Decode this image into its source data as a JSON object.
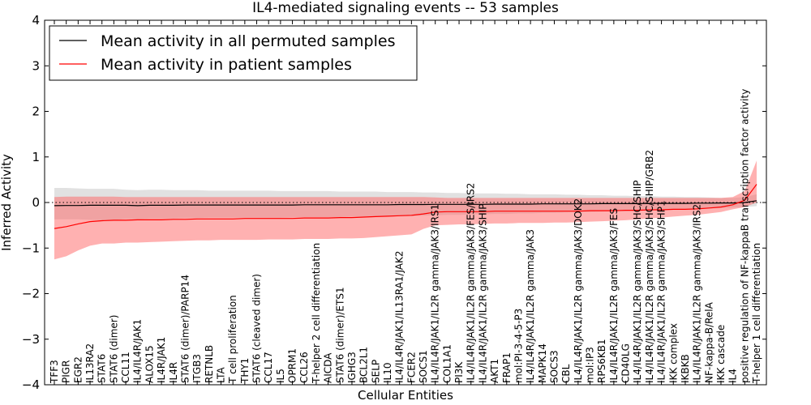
{
  "chart_data": {
    "type": "line",
    "title": "IL4-mediated signaling events -- 53 samples",
    "xlabel": "Cellular Entities",
    "ylabel": "Inferred Activity",
    "ylim": [
      -4,
      4
    ],
    "yticks": [
      "4",
      "3",
      "2",
      "1",
      "0",
      "−1",
      "−2",
      "−3",
      "−4"
    ],
    "ytick_values": [
      4,
      3,
      2,
      1,
      0,
      -1,
      -2,
      -3,
      -4
    ],
    "grid": false,
    "legend_position": "top-left",
    "zero_reference_line": "dotted",
    "categories": [
      "TFF3",
      "PIGR",
      "EGR2",
      "IL13RA2",
      "STAT6",
      "STAT6 (dimer)",
      "CCL11",
      "IL4/IL4R/JAK1",
      "ALOX15",
      "IL4R/JAK1",
      "IL4R",
      "STAT6 (dimer)/PARP14",
      "ITGB3",
      "RETNLB",
      "LTA",
      "T cell proliferation",
      "THY1",
      "STAT6 (cleaved dimer)",
      "CCL17",
      "IL5",
      "OPRM1",
      "CCL26",
      "T-helper 2 cell differentiation",
      "AICDA",
      "STAT6 (dimer)/ETS1",
      "IGHG3",
      "BCL2L1",
      "SELP",
      "IL10",
      "IL4/IL4R/JAK1/IL13RA1/JAK2",
      "FCER2",
      "SOCS1",
      "IL4/IL4R/JAK1/IL2R gamma/JAK3/IRS1",
      "COL1A1",
      "PI3K",
      "IL4/IL4R/JAK1/IL2R gamma/JAK3/FES/IRS2",
      "IL4/IL4R/JAK1/IL2R gamma/JAK3/SHIP",
      "AKT1",
      "FRAP1",
      "mol:PI-3-4-5-P3",
      "IL4/IL4R/JAK1/IL2R gamma/JAK3",
      "MAPK14",
      "SOCS3",
      "CBL",
      "IL4/IL4R/JAK1/IL2R gamma/JAK3/DOK2",
      "mol:IP3",
      "RPS6KB1",
      "IL4/IL4R/JAK1/IL2R gamma/JAK3/FES",
      "CD40LG",
      "IL4/IL4R/JAK1/IL2R gamma/JAK3/SHC/SHIP",
      "IL4/IL4R/JAK1/IL2R gamma/JAK3/SHC/SHIP/GRB2",
      "IL4/IL4R/JAK1/IL2R gamma/JAK3/SHP1",
      "IKK complex",
      "IKBKB",
      "IL4/IL4R/JAK1/IL2R gamma/JAK3/IRS2",
      "NF-kappa-B/RelA",
      "IKK cascade",
      "IL4",
      "positive regulation of NF-kappaB transcription factor activity",
      "T-helper 1 cell differentiation"
    ],
    "series": [
      {
        "name": "Mean activity in all permuted samples",
        "color": "#000000",
        "values": [
          -0.07,
          -0.065,
          -0.065,
          -0.06,
          -0.06,
          -0.06,
          -0.06,
          -0.07,
          -0.06,
          -0.06,
          -0.06,
          -0.055,
          -0.055,
          -0.055,
          -0.055,
          -0.055,
          -0.055,
          -0.055,
          -0.055,
          -0.055,
          -0.055,
          -0.05,
          -0.05,
          -0.05,
          -0.05,
          -0.05,
          -0.05,
          -0.05,
          -0.05,
          -0.045,
          -0.045,
          -0.045,
          -0.04,
          -0.04,
          -0.04,
          -0.04,
          -0.04,
          -0.035,
          -0.035,
          -0.035,
          -0.035,
          -0.03,
          -0.03,
          -0.03,
          -0.03,
          -0.03,
          -0.025,
          -0.025,
          -0.025,
          -0.025,
          -0.02,
          -0.02,
          -0.02,
          -0.02,
          -0.015,
          -0.015,
          -0.01,
          -0.01,
          0.0,
          0.04
        ],
        "lower": [
          -0.37,
          -0.37,
          -0.37,
          -0.38,
          -0.39,
          -0.39,
          -0.36,
          -0.37,
          -0.35,
          -0.35,
          -0.35,
          -0.34,
          -0.34,
          -0.33,
          -0.33,
          -0.33,
          -0.33,
          -0.33,
          -0.33,
          -0.33,
          -0.32,
          -0.32,
          -0.32,
          -0.32,
          -0.32,
          -0.31,
          -0.31,
          -0.31,
          -0.31,
          -0.3,
          -0.3,
          -0.29,
          -0.28,
          -0.27,
          -0.27,
          -0.26,
          -0.26,
          -0.25,
          -0.25,
          -0.24,
          -0.24,
          -0.23,
          -0.23,
          -0.22,
          -0.21,
          -0.21,
          -0.2,
          -0.19,
          -0.19,
          -0.18,
          -0.17,
          -0.16,
          -0.16,
          -0.15,
          -0.14,
          -0.13,
          -0.12,
          -0.11,
          -0.1,
          -0.08
        ],
        "upper": [
          0.32,
          0.32,
          0.31,
          0.3,
          0.3,
          0.3,
          0.28,
          0.27,
          0.28,
          0.28,
          0.27,
          0.27,
          0.27,
          0.26,
          0.26,
          0.26,
          0.26,
          0.26,
          0.26,
          0.25,
          0.25,
          0.25,
          0.25,
          0.25,
          0.24,
          0.24,
          0.24,
          0.24,
          0.23,
          0.23,
          0.23,
          0.22,
          0.22,
          0.21,
          0.21,
          0.2,
          0.2,
          0.2,
          0.19,
          0.19,
          0.18,
          0.18,
          0.18,
          0.17,
          0.17,
          0.16,
          0.16,
          0.15,
          0.15,
          0.14,
          0.14,
          0.13,
          0.13,
          0.12,
          0.12,
          0.11,
          0.1,
          0.1,
          0.12,
          0.18
        ]
      },
      {
        "name": "Mean activity in patient samples",
        "color": "#ff0000",
        "values": [
          -0.57,
          -0.53,
          -0.47,
          -0.42,
          -0.4,
          -0.39,
          -0.39,
          -0.38,
          -0.38,
          -0.38,
          -0.37,
          -0.37,
          -0.36,
          -0.36,
          -0.36,
          -0.36,
          -0.35,
          -0.35,
          -0.35,
          -0.35,
          -0.35,
          -0.34,
          -0.34,
          -0.34,
          -0.33,
          -0.33,
          -0.32,
          -0.31,
          -0.3,
          -0.29,
          -0.28,
          -0.25,
          -0.21,
          -0.2,
          -0.2,
          -0.2,
          -0.2,
          -0.19,
          -0.19,
          -0.19,
          -0.19,
          -0.19,
          -0.19,
          -0.19,
          -0.19,
          -0.18,
          -0.18,
          -0.18,
          -0.17,
          -0.17,
          -0.16,
          -0.16,
          -0.15,
          -0.15,
          -0.14,
          -0.12,
          -0.1,
          -0.05,
          0.05,
          0.4
        ],
        "lower": [
          -1.25,
          -1.18,
          -1.05,
          -0.95,
          -0.9,
          -0.9,
          -0.88,
          -0.88,
          -0.87,
          -0.86,
          -0.85,
          -0.84,
          -0.83,
          -0.83,
          -0.82,
          -0.82,
          -0.82,
          -0.82,
          -0.81,
          -0.81,
          -0.81,
          -0.8,
          -0.8,
          -0.8,
          -0.79,
          -0.79,
          -0.78,
          -0.76,
          -0.74,
          -0.72,
          -0.7,
          -0.58,
          -0.5,
          -0.49,
          -0.48,
          -0.48,
          -0.47,
          -0.46,
          -0.46,
          -0.45,
          -0.45,
          -0.45,
          -0.44,
          -0.44,
          -0.43,
          -0.42,
          -0.41,
          -0.4,
          -0.39,
          -0.37,
          -0.35,
          -0.33,
          -0.31,
          -0.29,
          -0.27,
          -0.24,
          -0.21,
          -0.15,
          -0.1,
          0.0
        ],
        "upper": [
          0.12,
          0.13,
          0.13,
          0.13,
          0.13,
          0.13,
          0.12,
          0.12,
          0.12,
          0.12,
          0.12,
          0.12,
          0.12,
          0.12,
          0.12,
          0.12,
          0.12,
          0.12,
          0.12,
          0.12,
          0.12,
          0.12,
          0.12,
          0.12,
          0.12,
          0.12,
          0.12,
          0.12,
          0.12,
          0.12,
          0.12,
          0.12,
          0.11,
          0.1,
          0.1,
          0.1,
          0.1,
          0.1,
          0.1,
          0.1,
          0.1,
          0.1,
          0.1,
          0.1,
          0.1,
          0.1,
          0.1,
          0.1,
          0.1,
          0.1,
          0.1,
          0.1,
          0.1,
          0.1,
          0.1,
          0.1,
          0.1,
          0.12,
          0.25,
          0.92
        ]
      }
    ]
  }
}
